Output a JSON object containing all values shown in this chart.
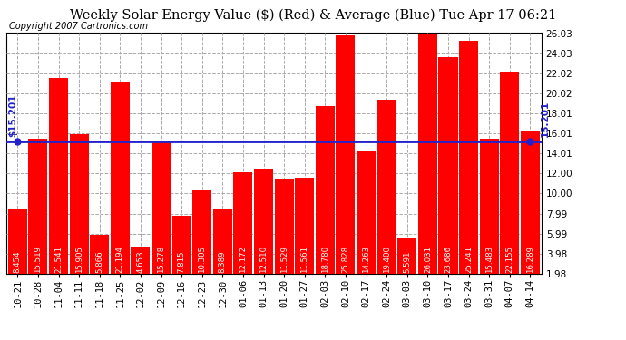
{
  "title": "Weekly Solar Energy Value ($) (Red) & Average (Blue) Tue Apr 17 06:21",
  "copyright": "Copyright 2007 Cartronics.com",
  "categories": [
    "10-21",
    "10-28",
    "11-04",
    "11-11",
    "11-18",
    "11-25",
    "12-02",
    "12-09",
    "12-16",
    "12-23",
    "12-30",
    "01-06",
    "01-13",
    "01-20",
    "01-27",
    "02-03",
    "02-10",
    "02-17",
    "02-24",
    "03-03",
    "03-10",
    "03-17",
    "03-24",
    "03-31",
    "04-07",
    "04-14"
  ],
  "values": [
    8.454,
    15.519,
    21.541,
    15.905,
    5.866,
    21.194,
    4.653,
    15.278,
    7.815,
    10.305,
    8.389,
    12.172,
    12.51,
    11.529,
    11.561,
    18.78,
    25.828,
    14.263,
    19.4,
    5.591,
    26.031,
    23.686,
    25.241,
    15.483,
    22.155,
    16.289
  ],
  "average": 15.201,
  "bar_color": "#ff0000",
  "avg_line_color": "#2222cc",
  "background_color": "#ffffff",
  "plot_bg_color": "#ffffff",
  "grid_color": "#aaaaaa",
  "text_color": "#000000",
  "ylim_min": 1.98,
  "ylim_max": 26.03,
  "yticks": [
    1.98,
    3.98,
    5.99,
    7.99,
    10.0,
    12.0,
    14.01,
    16.01,
    18.01,
    20.02,
    22.02,
    24.03,
    26.03
  ],
  "left_label": "$15.201",
  "right_label": "15.201",
  "title_fontsize": 10.5,
  "copyright_fontsize": 7,
  "tick_fontsize": 7.5,
  "value_fontsize": 6.2
}
